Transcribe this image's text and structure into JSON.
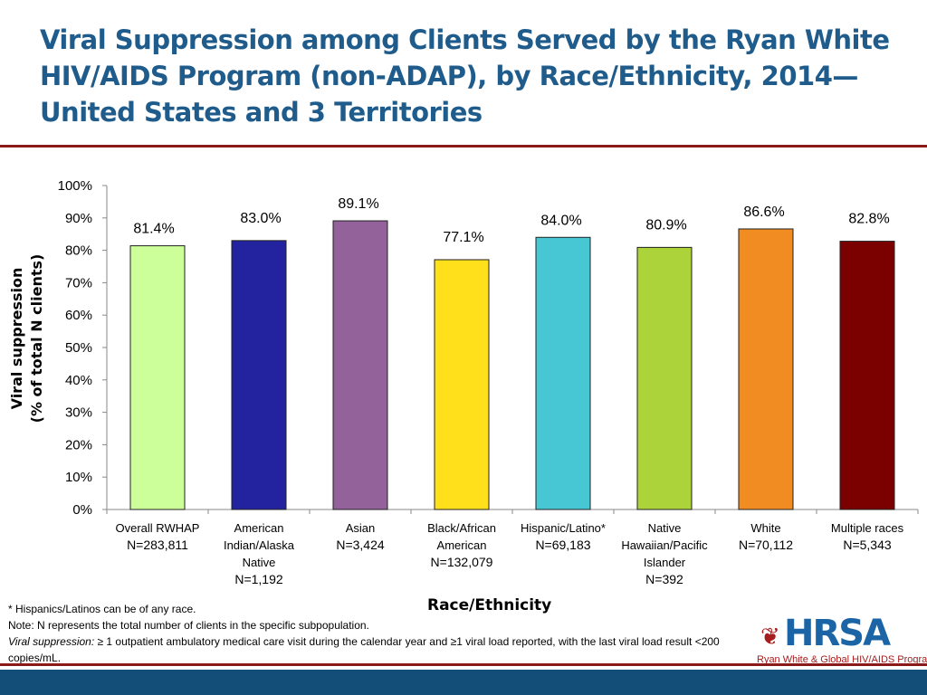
{
  "title": "Viral Suppression among Clients Served by the Ryan White HIV/AIDS Program (non-ADAP), by Race/Ethnicity, 2014—United States and 3 Territories",
  "chart_data": {
    "type": "bar",
    "xlabel": "Race/Ethnicity",
    "ylabel_lines": [
      "Viral suppression",
      "(% of total N clients)"
    ],
    "ylim": [
      0,
      100
    ],
    "yticks": [
      "0%",
      "10%",
      "20%",
      "30%",
      "40%",
      "50%",
      "60%",
      "70%",
      "80%",
      "90%",
      "100%"
    ],
    "grid": false,
    "categories": [
      {
        "lines": [
          "Overall RWHAP"
        ],
        "n": "N=283,811"
      },
      {
        "lines": [
          "American",
          "Indian/Alaska",
          "Native"
        ],
        "n": "N=1,192"
      },
      {
        "lines": [
          "Asian"
        ],
        "n": "N=3,424"
      },
      {
        "lines": [
          "Black/African",
          "American"
        ],
        "n": "N=132,079"
      },
      {
        "lines": [
          "Hispanic/Latino*"
        ],
        "n": "N=69,183"
      },
      {
        "lines": [
          "Native",
          "Hawaiian/Pacific",
          "Islander"
        ],
        "n": "N=392"
      },
      {
        "lines": [
          "White"
        ],
        "n": "N=70,112"
      },
      {
        "lines": [
          "Multiple races"
        ],
        "n": "N=5,343"
      }
    ],
    "values": [
      81.4,
      83.0,
      89.1,
      77.1,
      84.0,
      80.9,
      86.6,
      82.8
    ],
    "data_labels": [
      "81.4%",
      "83.0%",
      "89.1%",
      "77.1%",
      "84.0%",
      "80.9%",
      "86.6%",
      "82.8%"
    ],
    "colors": [
      "#ccff99",
      "#2323a0",
      "#93629a",
      "#ffe01a",
      "#47c6d4",
      "#acd339",
      "#f08c21",
      "#7b0000"
    ]
  },
  "notes": {
    "hispanic": "* Hispanics/Latinos can be of any race.",
    "n_note": "Note: N represents the total number of clients in the specific subpopulation.",
    "vs_term": "Viral suppression:",
    "vs_def": " ≥ 1 outpatient ambulatory medical care visit during the calendar year and ≥1 viral load reported, with the last  viral load result <200 copies/mL."
  },
  "logo": {
    "name": "HRSA",
    "subtitle": "Ryan White & Global HIV/AIDS Programs"
  }
}
